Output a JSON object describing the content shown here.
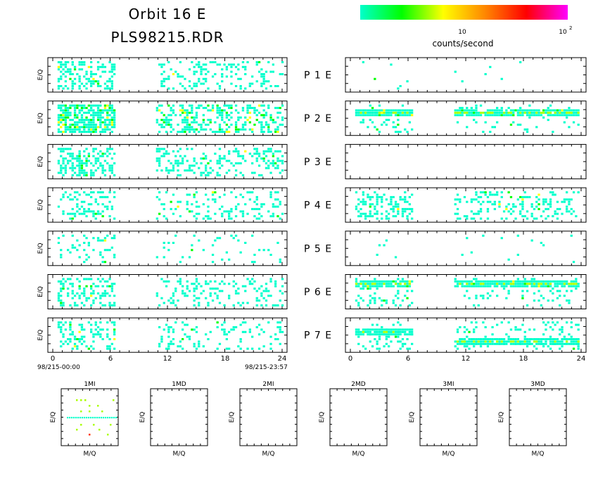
{
  "header": {
    "title_line1": "Orbit 16 E",
    "title_line2": "PLS98215.RDR"
  },
  "colorbar": {
    "colors": [
      "#00ffcc",
      "#00ff00",
      "#ffff00",
      "#ff8800",
      "#ff0000",
      "#ff00ff"
    ],
    "tick_labels": [
      "10",
      "10"
    ],
    "tick_superscript": "2",
    "label": "counts/second",
    "scale": "log",
    "range": [
      1,
      100
    ]
  },
  "chart_data": {
    "type": "heatmap",
    "x_axis": {
      "range": [
        0,
        24
      ],
      "ticks": [
        "0",
        "6",
        "12",
        "18",
        "24"
      ],
      "start_label": "98/215-00:00",
      "end_label": "98/215-23:57"
    },
    "y_label": "E/Q",
    "panels": [
      {
        "label": "P 1 E",
        "left_activity": [
          0.5,
          6.5,
          10.8,
          24
        ],
        "right_activity": "sparse"
      },
      {
        "label": "P 2 E",
        "left_activity": [
          0.5,
          6.5,
          10.8,
          24
        ],
        "right_activity": "band"
      },
      {
        "label": "P 3 E",
        "left_activity": [
          0.5,
          6.5,
          10.8,
          24
        ],
        "right_activity": "empty"
      },
      {
        "label": "P 4 E",
        "left_activity": [
          0.5,
          6.5,
          10.8,
          24
        ],
        "right_activity": "dense"
      },
      {
        "label": "P 5 E",
        "left_activity": [
          0.5,
          6.5,
          10.8,
          24
        ],
        "right_activity": "sparse"
      },
      {
        "label": "P 6 E",
        "left_activity": [
          0.5,
          6.5,
          10.8,
          24
        ],
        "right_activity": "band"
      },
      {
        "label": "P 7 E",
        "left_activity": [
          0.5,
          6.5,
          10.8,
          24
        ],
        "right_activity": "two-bands"
      }
    ],
    "mass_plots": {
      "titles": [
        "1MI",
        "1MD",
        "2MI",
        "2MD",
        "3MI",
        "3MD"
      ],
      "xlabel": "M/Q",
      "ylabel": "E/Q"
    }
  }
}
